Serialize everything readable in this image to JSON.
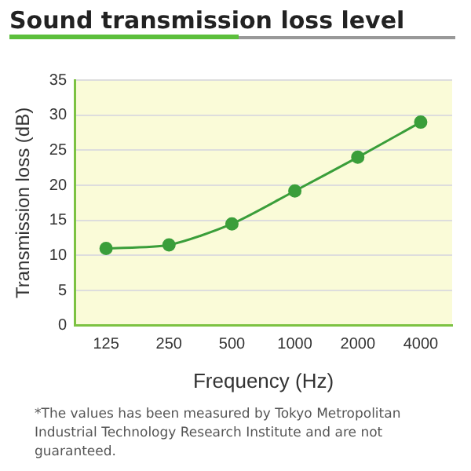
{
  "chart_data": {
    "type": "line",
    "title": "Sound transmission loss level",
    "xlabel": "Frequency (Hz)",
    "ylabel": "Transmission loss (dB)",
    "categories": [
      "125",
      "250",
      "500",
      "1000",
      "2000",
      "4000"
    ],
    "series": [
      {
        "color": "#3a9e3a",
        "values": [
          11,
          11.5,
          14.5,
          19.2,
          24,
          29
        ]
      }
    ],
    "ylim": [
      0,
      35
    ],
    "yticks": [
      0,
      5,
      10,
      15,
      20,
      25,
      30,
      35
    ],
    "grid": "y",
    "legend": false,
    "marker": "circle",
    "line_style": "solid",
    "annotations": [
      "*The values has been measured by Tokyo Metropolitan Industrial Technology Research Institute and are not guaranteed."
    ]
  }
}
